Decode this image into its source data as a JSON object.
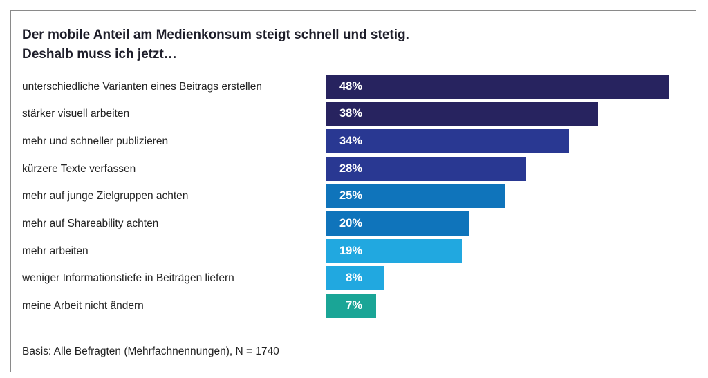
{
  "chart_data": {
    "type": "bar",
    "orientation": "horizontal",
    "title_line1": "Der mobile Anteil am Medienkonsum steigt schnell und stetig.",
    "title_line2": "Deshalb muss ich jetzt…",
    "categories": [
      "unterschiedliche Varianten eines Beitrags erstellen",
      "stärker visuell arbeiten",
      "mehr und schneller publizieren",
      "kürzere Texte verfassen",
      "mehr auf junge Zielgruppen achten",
      "mehr auf Shareability achten",
      "mehr arbeiten",
      "weniger Informationstiefe in Beiträgen liefern",
      "meine Arbeit nicht ändern"
    ],
    "values": [
      48,
      38,
      34,
      28,
      25,
      20,
      19,
      8,
      7
    ],
    "value_labels": [
      "48%",
      "38%",
      "34%",
      "28%",
      "25%",
      "20%",
      "19%",
      "8%",
      "7%"
    ],
    "colors": [
      "#27235f",
      "#27235f",
      "#293892",
      "#293892",
      "#0f74bb",
      "#0f74bb",
      "#21a8e0",
      "#21a8e0",
      "#1aa596"
    ],
    "unit": "%",
    "grid": false,
    "note": "Basis: Alle Befragten (Mehrfachnennungen), N = 1740"
  }
}
